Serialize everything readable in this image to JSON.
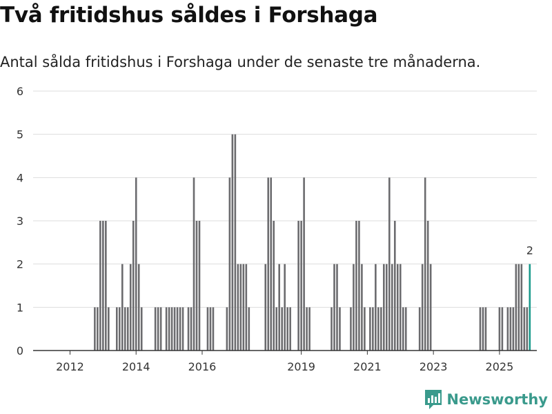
{
  "header": {
    "title": "Två fritidshus såldes i Forshaga",
    "subtitle": "Antal sålda fritidshus i Forshaga under de senaste tre månaderna."
  },
  "brand": {
    "name": "Newsworthy",
    "color": "#3a9a8c"
  },
  "colors": {
    "bar": "#6b6b6e",
    "highlight": "#1a9a8c",
    "grid": "#dddddd",
    "axis": "#333333"
  },
  "chart_data": {
    "type": "bar",
    "title": "Två fritidshus såldes i Forshaga",
    "xlabel": "",
    "ylabel": "",
    "ylim": [
      0,
      6
    ],
    "yticks": [
      "0",
      "1",
      "2",
      "3",
      "4",
      "5",
      "6"
    ],
    "xticks": [
      {
        "label": "2012",
        "index": 4
      },
      {
        "label": "2014",
        "index": 28
      },
      {
        "label": "2016",
        "index": 52
      },
      {
        "label": "2019",
        "index": 88
      },
      {
        "label": "2021",
        "index": 112
      },
      {
        "label": "2023",
        "index": 136
      },
      {
        "label": "2025",
        "index": 160
      }
    ],
    "highlight_label": "2",
    "series": [
      {
        "name": "Antal sålda fritidshus",
        "values": [
          0,
          0,
          0,
          0,
          0,
          0,
          0,
          0,
          0,
          0,
          0,
          0,
          0,
          1,
          1,
          3,
          3,
          3,
          1,
          0,
          0,
          1,
          1,
          2,
          1,
          1,
          2,
          3,
          4,
          2,
          1,
          0,
          0,
          0,
          0,
          1,
          1,
          1,
          0,
          1,
          1,
          1,
          1,
          1,
          1,
          1,
          0,
          1,
          1,
          4,
          3,
          3,
          0,
          0,
          1,
          1,
          1,
          0,
          0,
          0,
          0,
          1,
          4,
          5,
          5,
          2,
          2,
          2,
          2,
          1,
          0,
          0,
          0,
          0,
          0,
          2,
          4,
          4,
          3,
          1,
          2,
          1,
          2,
          1,
          1,
          0,
          0,
          3,
          3,
          4,
          1,
          1,
          0,
          0,
          0,
          0,
          0,
          0,
          0,
          1,
          2,
          2,
          1,
          0,
          0,
          0,
          1,
          2,
          3,
          3,
          2,
          1,
          0,
          1,
          1,
          2,
          1,
          1,
          2,
          2,
          4,
          2,
          3,
          2,
          2,
          1,
          1,
          0,
          0,
          0,
          0,
          1,
          2,
          4,
          3,
          2,
          0,
          0,
          0,
          0,
          0,
          0,
          0,
          0,
          0,
          0,
          0,
          0,
          0,
          0,
          0,
          0,
          0,
          1,
          1,
          1,
          0,
          0,
          0,
          0,
          1,
          1,
          0,
          1,
          1,
          1,
          2,
          2,
          2,
          1,
          1,
          2
        ]
      }
    ]
  }
}
